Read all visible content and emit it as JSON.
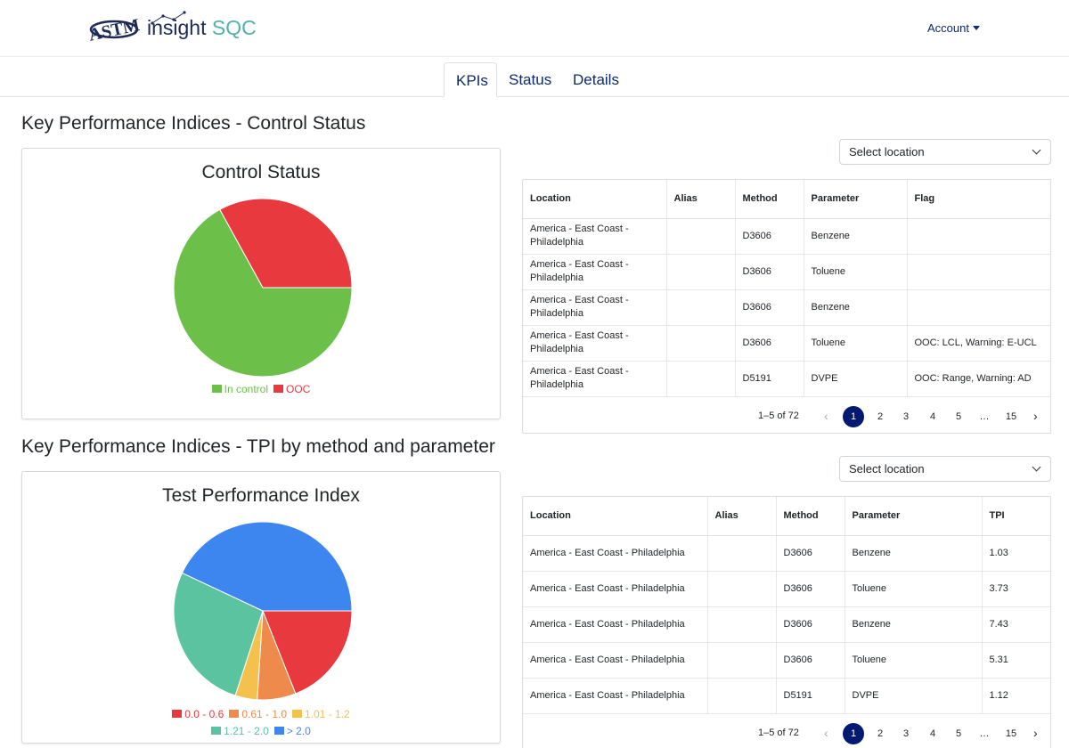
{
  "header": {
    "logo_text": "ASTM",
    "brand_prefix": "insight ",
    "brand_suffix": "SQC",
    "account_label": "Account"
  },
  "tabs": [
    {
      "label": "KPIs",
      "active": true
    },
    {
      "label": "Status",
      "active": false
    },
    {
      "label": "Details",
      "active": false
    }
  ],
  "control_section": {
    "heading": "Key Performance Indices - Control Status",
    "chart_title": "Control Status",
    "select_label": "Select location",
    "table": {
      "columns": [
        "Location",
        "Alias",
        "Method",
        "Parameter",
        "Flag"
      ],
      "rows": [
        [
          "America - East Coast - Philadelphia",
          "",
          "D3606",
          "Benzene",
          ""
        ],
        [
          "America - East Coast - Philadelphia",
          "",
          "D3606",
          "Toluene",
          ""
        ],
        [
          "America - East Coast - Philadelphia",
          "",
          "D3606",
          "Benzene",
          ""
        ],
        [
          "America - East Coast - Philadelphia",
          "",
          "D3606",
          "Toluene",
          "OOC: LCL, Warning: E-UCL"
        ],
        [
          "America - East Coast - Philadelphia",
          "",
          "D5191",
          "DVPE",
          "OOC: Range, Warning: AD"
        ]
      ]
    },
    "pagination": {
      "range": "1–5 of 72",
      "pages": [
        "1",
        "2",
        "3",
        "4",
        "5",
        "…",
        "15"
      ],
      "current": "1",
      "prev": "‹",
      "next": "›"
    }
  },
  "tpi_section": {
    "heading": "Key Performance Indices - TPI by method and parameter",
    "chart_title": "Test Performance Index",
    "select_label": "Select location",
    "table": {
      "columns": [
        "Location",
        "Alias",
        "Method",
        "Parameter",
        "TPI"
      ],
      "rows": [
        [
          "America - East Coast - Philadelphia",
          "",
          "D3606",
          "Benzene",
          "1.03"
        ],
        [
          "America - East Coast - Philadelphia",
          "",
          "D3606",
          "Toluene",
          "3.73"
        ],
        [
          "America - East Coast - Philadelphia",
          "",
          "D3606",
          "Benzene",
          "7.43"
        ],
        [
          "America - East Coast - Philadelphia",
          "",
          "D3606",
          "Toluene",
          "5.31"
        ],
        [
          "America - East Coast - Philadelphia",
          "",
          "D5191",
          "DVPE",
          "1.12"
        ]
      ]
    },
    "pagination": {
      "range": "1–5 of 72",
      "pages": [
        "1",
        "2",
        "3",
        "4",
        "5",
        "…",
        "15"
      ],
      "current": "1",
      "prev": "‹",
      "next": "›"
    }
  },
  "chart_data": [
    {
      "type": "pie",
      "title": "Control Status",
      "legend_position": "bottom",
      "slices": [
        {
          "label": "In control",
          "value": 67,
          "color": "#6cc04a"
        },
        {
          "label": "OOC",
          "value": 33,
          "color": "#e8393f"
        }
      ]
    },
    {
      "type": "pie",
      "title": "Test Performance Index",
      "legend_position": "bottom",
      "slices": [
        {
          "label": "0.0 - 0.6",
          "value": 19,
          "color": "#e8393f"
        },
        {
          "label": "0.61 - 1.0",
          "value": 7,
          "color": "#ee8a4c"
        },
        {
          "label": "1.01 - 1.2",
          "value": 4,
          "color": "#f4c14e"
        },
        {
          "label": "1.21 - 2.0",
          "value": 27,
          "color": "#5cc3a1"
        },
        {
          "label": "> 2.0",
          "value": 43,
          "color": "#3d86f0"
        }
      ]
    }
  ]
}
